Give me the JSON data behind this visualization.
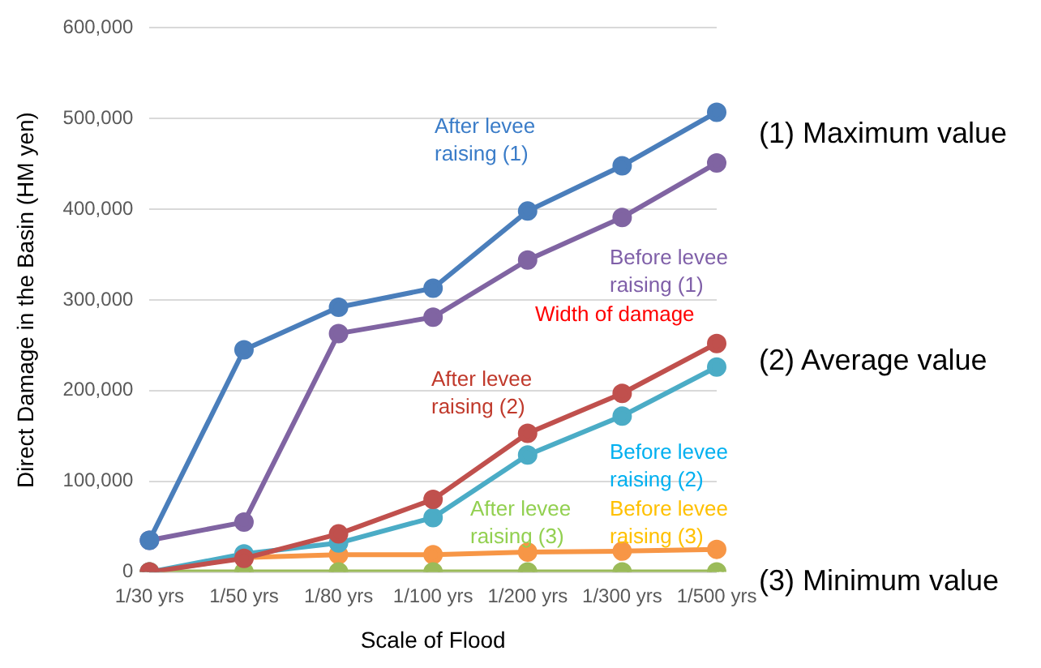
{
  "chart_data": {
    "type": "line",
    "xlabel": "Scale of Flood",
    "ylabel": "Direct Damage in the Basin (HM yen)",
    "categories": [
      "1/30 yrs",
      "1/50 yrs",
      "1/80 yrs",
      "1/100 yrs",
      "1/200 yrs",
      "1/300 yrs",
      "1/500 yrs"
    ],
    "series": [
      {
        "name": "After levee raising (1)",
        "color": "#4a7ebb",
        "values": [
          35000,
          245000,
          292000,
          313000,
          398000,
          448000,
          507000
        ]
      },
      {
        "name": "Before levee raising (1)",
        "color": "#8064a2",
        "values": [
          35000,
          55000,
          263000,
          281000,
          344000,
          391000,
          451000
        ]
      },
      {
        "name": "After levee raising (2)",
        "color": "#c0504d",
        "values": [
          0,
          15000,
          42000,
          80000,
          153000,
          197000,
          252000
        ]
      },
      {
        "name": "Before levee raising (2)",
        "color": "#4bacc6",
        "values": [
          0,
          20000,
          32000,
          60000,
          129000,
          172000,
          226000
        ]
      },
      {
        "name": "After levee raising (3)",
        "color": "#9bbb59",
        "values": [
          0,
          0,
          0,
          0,
          0,
          0,
          0
        ]
      },
      {
        "name": "Before levee raising (3)",
        "color": "#f79646",
        "values": [
          0,
          16000,
          19000,
          19000,
          22000,
          23000,
          25000
        ]
      }
    ],
    "annotations": [
      "Width of damage",
      "(1) Maximum value",
      "(2) Average value",
      "(3) Minimum value"
    ],
    "ylim": [
      0,
      600000
    ],
    "yticks": [
      0,
      {
        "value": 100000,
        "label": "100,000"
      },
      {
        "value": 200000,
        "label": "200,000"
      },
      {
        "value": 300000,
        "label": "300,000"
      },
      {
        "value": 400000,
        "label": "400,000"
      },
      {
        "value": 500000,
        "label": "500,000"
      },
      {
        "value": 600000,
        "label": "600,000"
      }
    ],
    "grid": "y",
    "legend": false,
    "marker": "circle",
    "line_style": "solid"
  }
}
